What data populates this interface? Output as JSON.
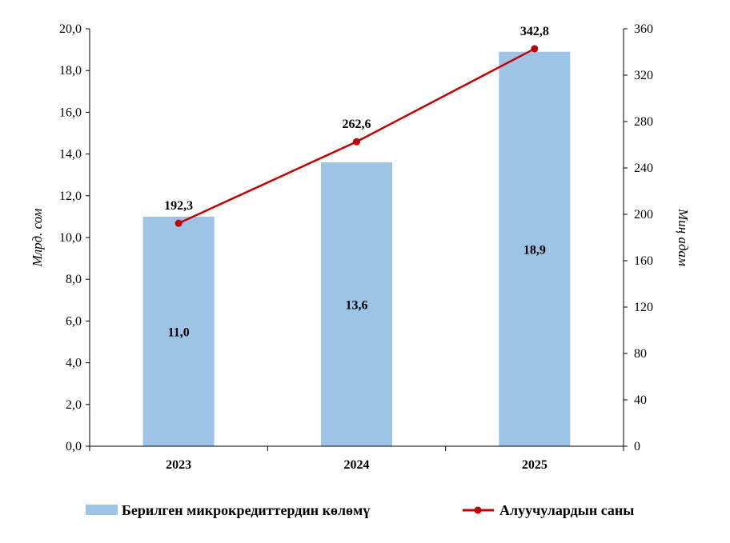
{
  "chart_data": {
    "type": "bar",
    "categories": [
      "2023",
      "2024",
      "2025"
    ],
    "series": [
      {
        "name": "Берилген микрокредиттердин көлөмү",
        "type": "bar",
        "axis": "left",
        "values": [
          11.0,
          13.6,
          18.9
        ],
        "labels": [
          "11,0",
          "13,6",
          "18,9"
        ],
        "color": "#9dc3e6"
      },
      {
        "name": "Алуучулардын саны",
        "type": "line",
        "axis": "right",
        "values": [
          192.3,
          262.6,
          342.8
        ],
        "labels": [
          "192,3",
          "262,6",
          "342,8"
        ],
        "color": "#c00000"
      }
    ],
    "ylabel": "Млрд. сом",
    "y2label": "Миң адам",
    "ylim": [
      0,
      20
    ],
    "y2lim": [
      0,
      360
    ],
    "yticks": [
      "0,0",
      "2,0",
      "4,0",
      "6,0",
      "8,0",
      "10,0",
      "12,0",
      "14,0",
      "16,0",
      "18,0",
      "20,0"
    ],
    "y2ticks": [
      "0",
      "40",
      "80",
      "120",
      "160",
      "200",
      "240",
      "280",
      "320",
      "360"
    ],
    "grid": false,
    "legend": "bottom"
  }
}
